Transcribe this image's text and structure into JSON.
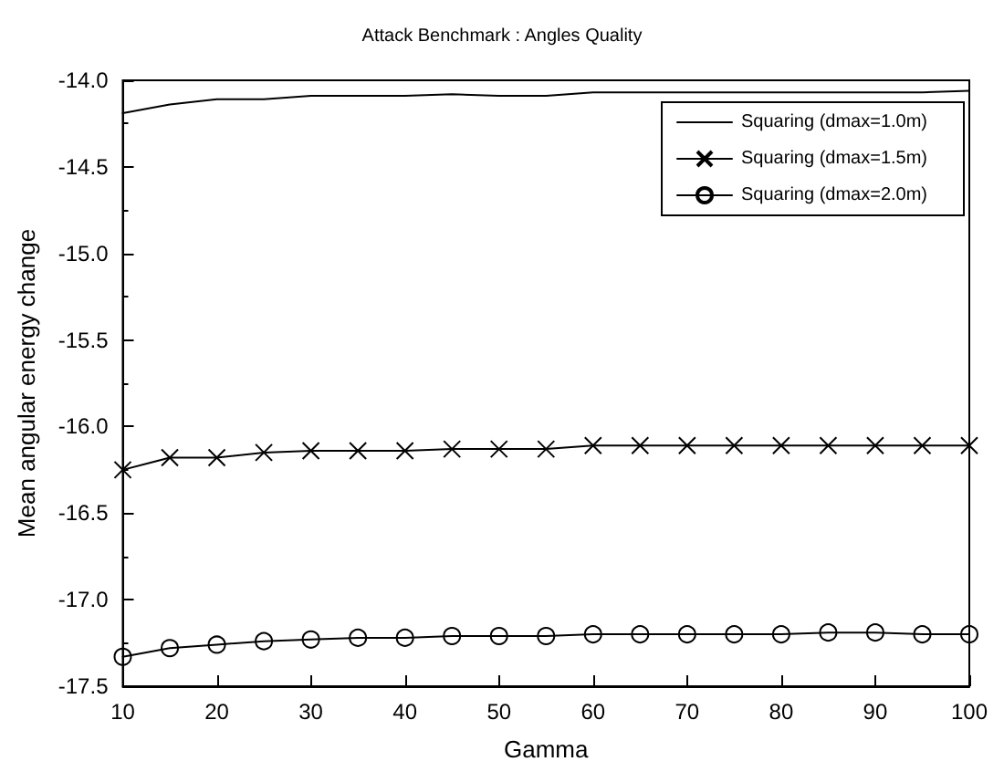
{
  "chart_data": {
    "type": "line",
    "title": "Attack Benchmark : Angles Quality",
    "xlabel": "Gamma",
    "ylabel": "Mean angular energy change",
    "x": [
      10,
      15,
      20,
      25,
      30,
      35,
      40,
      45,
      50,
      55,
      60,
      65,
      70,
      75,
      80,
      85,
      90,
      95,
      100
    ],
    "series": [
      {
        "name": "Squaring (dmax=1.0m)",
        "color": "#000000",
        "marker": "none",
        "values": [
          -14.19,
          -14.14,
          -14.11,
          -14.11,
          -14.09,
          -14.09,
          -14.09,
          -14.08,
          -14.09,
          -14.09,
          -14.07,
          -14.07,
          -14.07,
          -14.07,
          -14.07,
          -14.07,
          -14.07,
          -14.07,
          -14.06
        ]
      },
      {
        "name": "Squaring (dmax=1.5m)",
        "color": "#000000",
        "marker": "cross",
        "values": [
          -16.25,
          -16.18,
          -16.18,
          -16.15,
          -16.14,
          -16.14,
          -16.14,
          -16.13,
          -16.13,
          -16.13,
          -16.11,
          -16.11,
          -16.11,
          -16.11,
          -16.11,
          -16.11,
          -16.11,
          -16.11,
          -16.11
        ]
      },
      {
        "name": "Squaring (dmax=2.0m)",
        "color": "#000000",
        "marker": "circle",
        "values": [
          -17.33,
          -17.28,
          -17.26,
          -17.24,
          -17.23,
          -17.22,
          -17.22,
          -17.21,
          -17.21,
          -17.21,
          -17.2,
          -17.2,
          -17.2,
          -17.2,
          -17.2,
          -17.19,
          -17.19,
          -17.2,
          -17.2
        ]
      }
    ],
    "xlim": [
      10,
      100
    ],
    "xticks": [
      10,
      20,
      30,
      40,
      50,
      60,
      70,
      80,
      90,
      100
    ],
    "ylim": [
      -17.5,
      -14.0
    ],
    "yticks": [
      {
        "value": -17.5,
        "label": "-17.5"
      },
      {
        "value": -17.0,
        "label": "-17.0"
      },
      {
        "value": -16.5,
        "label": "-16.5"
      },
      {
        "value": -16.0,
        "label": "-16.0"
      },
      {
        "value": -15.5,
        "label": "-15.5"
      },
      {
        "value": -15.0,
        "label": "-15.0"
      },
      {
        "value": -14.5,
        "label": "-14.5"
      },
      {
        "value": -14.0,
        "label": "-14.0"
      }
    ],
    "grid": false,
    "legend": "top right",
    "line_style": "solid"
  }
}
